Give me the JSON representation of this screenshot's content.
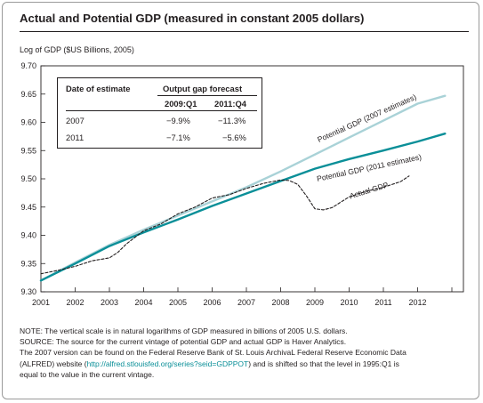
{
  "chart_data": {
    "type": "line",
    "title": "Actual and Potential GDP (measured in constant 2005 dollars)",
    "ylabel": "Log of GDP ($US Billions, 2005)",
    "xlabel": "",
    "ylim": [
      9.3,
      9.7
    ],
    "xlim": [
      2001,
      2013
    ],
    "y_ticks": [
      "9.30",
      "9.35",
      "9.40",
      "9.45",
      "9.50",
      "9.55",
      "9.60",
      "9.65",
      "9.70"
    ],
    "x_ticks": [
      "2001",
      "2002",
      "2003",
      "2004",
      "2005",
      "2006",
      "2007",
      "2008",
      "2009",
      "2010",
      "2011",
      "2012"
    ],
    "grid": false,
    "series": [
      {
        "name": "Potential GDP (2007 estimates)",
        "color": "#a9d2d7",
        "style": "solid",
        "points": [
          [
            2001.0,
            9.32
          ],
          [
            2002.0,
            9.352
          ],
          [
            2003.0,
            9.383
          ],
          [
            2004.0,
            9.41
          ],
          [
            2005.0,
            9.435
          ],
          [
            2006.0,
            9.46
          ],
          [
            2007.0,
            9.485
          ],
          [
            2008.0,
            9.513
          ],
          [
            2009.0,
            9.543
          ],
          [
            2010.0,
            9.573
          ],
          [
            2011.0,
            9.603
          ],
          [
            2012.0,
            9.633
          ],
          [
            2012.8,
            9.647
          ]
        ]
      },
      {
        "name": "Potential GDP (2011 estimates)",
        "color": "#0a8f98",
        "style": "solid",
        "points": [
          [
            2001.0,
            9.32
          ],
          [
            2002.0,
            9.35
          ],
          [
            2003.0,
            9.381
          ],
          [
            2004.0,
            9.405
          ],
          [
            2005.0,
            9.428
          ],
          [
            2006.0,
            9.452
          ],
          [
            2007.0,
            9.474
          ],
          [
            2008.0,
            9.496
          ],
          [
            2009.0,
            9.518
          ],
          [
            2010.0,
            9.535
          ],
          [
            2011.0,
            9.55
          ],
          [
            2012.0,
            9.566
          ],
          [
            2012.8,
            9.58
          ]
        ]
      },
      {
        "name": "Actual GDP",
        "color": "#231f20",
        "style": "dashed",
        "points": [
          [
            2001.0,
            9.332
          ],
          [
            2001.5,
            9.338
          ],
          [
            2002.0,
            9.345
          ],
          [
            2002.5,
            9.355
          ],
          [
            2003.0,
            9.36
          ],
          [
            2003.25,
            9.37
          ],
          [
            2003.5,
            9.385
          ],
          [
            2004.0,
            9.408
          ],
          [
            2004.5,
            9.42
          ],
          [
            2005.0,
            9.438
          ],
          [
            2005.5,
            9.45
          ],
          [
            2006.0,
            9.466
          ],
          [
            2006.5,
            9.472
          ],
          [
            2007.0,
            9.483
          ],
          [
            2007.5,
            9.492
          ],
          [
            2008.0,
            9.498
          ],
          [
            2008.25,
            9.497
          ],
          [
            2008.5,
            9.49
          ],
          [
            2008.75,
            9.47
          ],
          [
            2009.0,
            9.447
          ],
          [
            2009.25,
            9.445
          ],
          [
            2009.5,
            9.449
          ],
          [
            2010.0,
            9.468
          ],
          [
            2010.5,
            9.478
          ],
          [
            2011.0,
            9.485
          ],
          [
            2011.5,
            9.495
          ],
          [
            2011.75,
            9.505
          ]
        ]
      }
    ],
    "annotations": [
      {
        "text": "Potential GDP (2007 estimates)",
        "x": 2010.55,
        "y": 9.603,
        "angle": -24
      },
      {
        "text": "Potential GDP (2011 estimates)",
        "x": 2010.6,
        "y": 9.515,
        "angle": -12
      },
      {
        "text": "Actual GDP",
        "x": 2010.6,
        "y": 9.475,
        "angle": -17
      }
    ]
  },
  "table": {
    "col_header_left": "Date of estimate",
    "col_header_right": "Output gap forecast",
    "subheaders": [
      "2009:Q1",
      "2011:Q4"
    ],
    "rows": [
      {
        "label": "2007",
        "values": [
          "−9.9%",
          "−11.3%"
        ]
      },
      {
        "label": "2011",
        "values": [
          "−7.1%",
          "−5.6%"
        ]
      }
    ]
  },
  "notes": {
    "line1": "NOTE: The vertical scale is in natural logarithms of GDP measured in billions of 2005 U.S. dollars.",
    "line2": "SOURCE: The source for the current vintage of potential GDP and actual GDP is Haver Analytics.",
    "line3": "The 2007 version can be found on the Federal Reserve Bank of St. Louis ArchivaL Federal Reserve Economic Data",
    "line4_pre": "(ALFRED) website (",
    "line4_link": "http://alfred.stlouisfed.org/series?seid=GDPPOT",
    "line4_post": ") and is shifted so that the level in 1995:Q1 is",
    "line5": "equal to the value in the current vintage."
  }
}
